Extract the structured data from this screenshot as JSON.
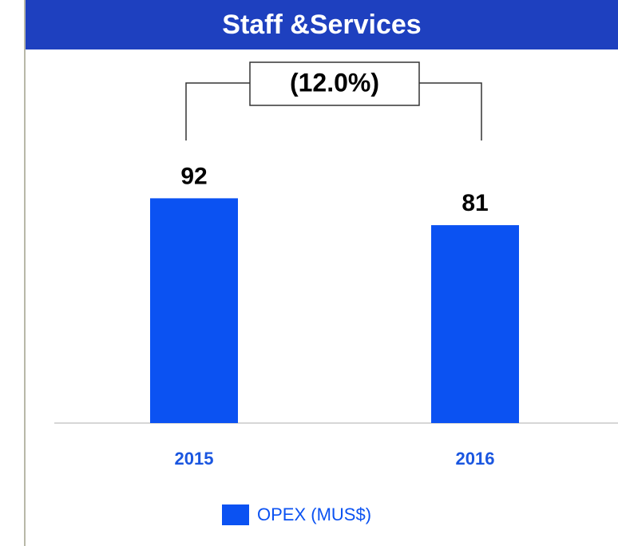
{
  "chart_data": {
    "type": "bar",
    "title": "Staff &Services",
    "categories": [
      "2015",
      "2016"
    ],
    "series": [
      {
        "name": "OPEX (MUS$)",
        "color": "#0b52f2",
        "values": [
          92,
          81
        ]
      }
    ],
    "annotation": "(12.0%)",
    "ylim": [
      0,
      115
    ]
  }
}
